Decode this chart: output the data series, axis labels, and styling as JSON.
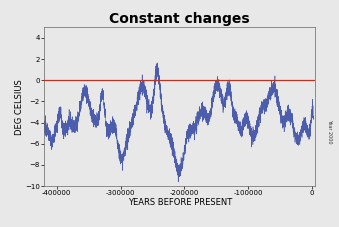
{
  "title": "Constant changes",
  "xlabel": "YEARS BEFORE PRESENT",
  "ylabel": "DEG CELSIUS",
  "xlim": [
    -420000,
    5000
  ],
  "ylim": [
    -10,
    5
  ],
  "yticks": [
    -10,
    -8,
    -6,
    -4,
    -2,
    0,
    2,
    4
  ],
  "xticks": [
    -400000,
    -300000,
    -200000,
    -100000,
    0
  ],
  "line_color": "#4455aa",
  "hline_color": "#bb3322",
  "hline_y": 0,
  "year_label": "Year 2000",
  "background_color": "#e8e8e8",
  "title_fontsize": 10,
  "axis_fontsize": 5,
  "label_fontsize": 6
}
